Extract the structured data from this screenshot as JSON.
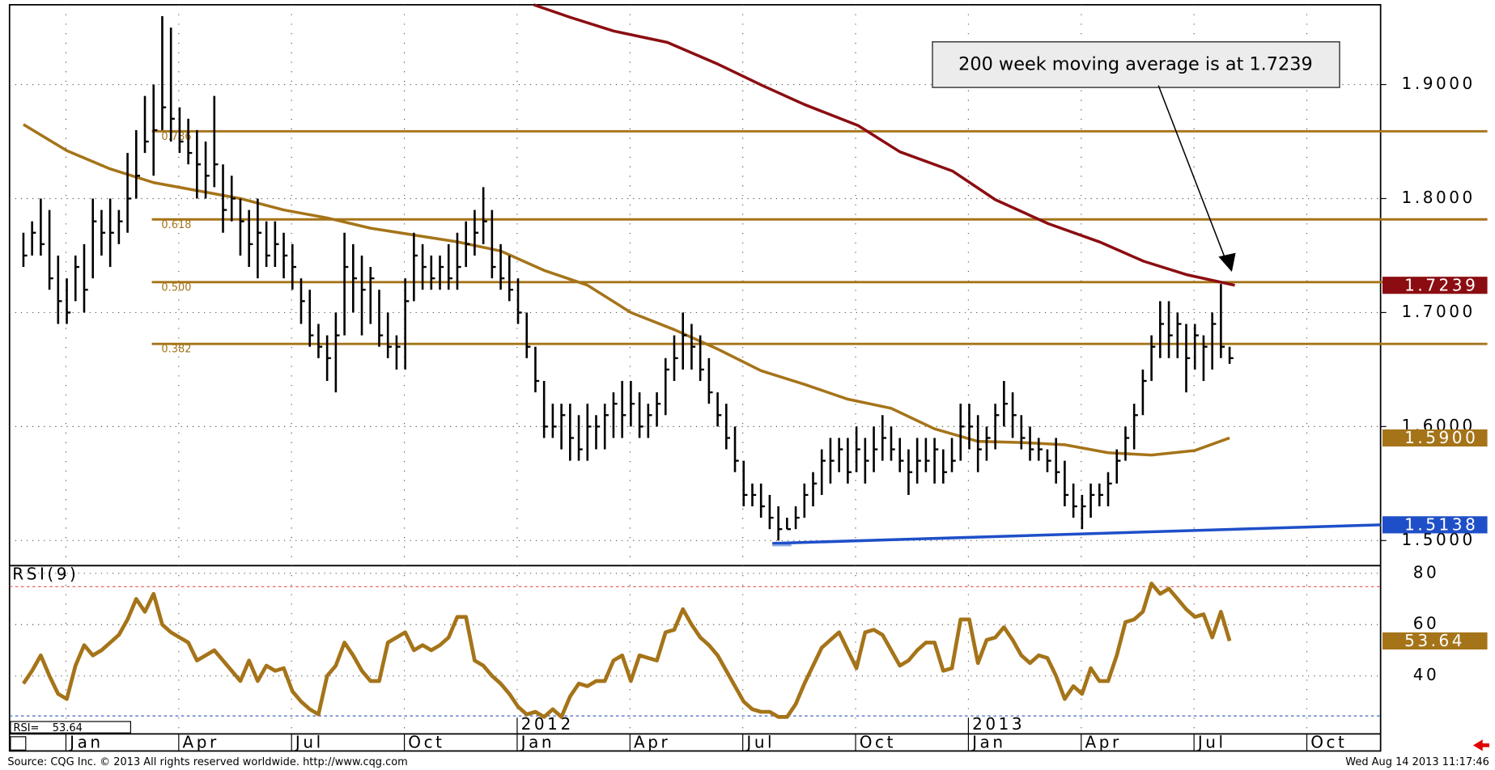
{
  "chart_data": {
    "type": "ohlc",
    "xlim": [
      -1.6,
      156.4
    ],
    "xticks": [
      {
        "value": 4.9,
        "label": "Jan"
      },
      {
        "value": 17.9,
        "label": "Apr"
      },
      {
        "value": 30.9,
        "label": "Jul"
      },
      {
        "value": 43.9,
        "label": "Oct"
      },
      {
        "value": 56.9,
        "label": "Jan"
      },
      {
        "value": 69.9,
        "label": "Apr"
      },
      {
        "value": 82.9,
        "label": "Jul"
      },
      {
        "value": 95.9,
        "label": "Oct"
      },
      {
        "value": 108.9,
        "label": "Jan"
      },
      {
        "value": 121.9,
        "label": "Apr"
      },
      {
        "value": 134.9,
        "label": "Jul"
      },
      {
        "value": 147.9,
        "label": "Oct"
      }
    ],
    "year_labels": [
      {
        "value": 56.9,
        "label": "2012"
      },
      {
        "value": 108.9,
        "label": "2013"
      }
    ],
    "ylim": [
      1.478,
      1.97
    ],
    "yticks": [
      {
        "value": 1.5,
        "label": "1.5000"
      },
      {
        "value": 1.6,
        "label": "1.6000"
      },
      {
        "value": 1.7,
        "label": "1.7000"
      },
      {
        "value": 1.8,
        "label": "1.8000"
      },
      {
        "value": 1.9,
        "label": "1.9000"
      }
    ],
    "grid": true,
    "bars": {
      "color": "#000000",
      "highs": [
        1.77,
        1.78,
        1.8,
        1.79,
        1.75,
        1.73,
        1.75,
        1.76,
        1.8,
        1.79,
        1.8,
        1.79,
        1.84,
        1.86,
        1.89,
        1.9,
        1.96,
        1.95,
        1.88,
        1.87,
        1.86,
        1.85,
        1.89,
        1.83,
        1.82,
        1.8,
        1.79,
        1.8,
        1.78,
        1.78,
        1.77,
        1.76,
        1.73,
        1.72,
        1.69,
        1.68,
        1.7,
        1.77,
        1.76,
        1.75,
        1.74,
        1.72,
        1.7,
        1.68,
        1.73,
        1.77,
        1.76,
        1.75,
        1.75,
        1.76,
        1.77,
        1.78,
        1.79,
        1.81,
        1.79,
        1.76,
        1.75,
        1.73,
        1.7,
        1.67,
        1.64,
        1.62,
        1.62,
        1.62,
        1.61,
        1.62,
        1.61,
        1.62,
        1.63,
        1.64,
        1.64,
        1.63,
        1.62,
        1.63,
        1.66,
        1.68,
        1.7,
        1.69,
        1.68,
        1.66,
        1.63,
        1.62,
        1.6,
        1.57,
        1.55,
        1.55,
        1.54,
        1.53,
        1.52,
        1.53,
        1.55,
        1.56,
        1.58,
        1.59,
        1.59,
        1.59,
        1.6,
        1.59,
        1.6,
        1.61,
        1.6,
        1.59,
        1.58,
        1.59,
        1.59,
        1.59,
        1.58,
        1.59,
        1.62,
        1.62,
        1.61,
        1.6,
        1.62,
        1.64,
        1.63,
        1.61,
        1.6,
        1.59,
        1.58,
        1.59,
        1.57,
        1.55,
        1.54,
        1.55,
        1.55,
        1.56,
        1.58,
        1.6,
        1.62,
        1.65,
        1.68,
        1.71,
        1.71,
        1.7,
        1.69,
        1.69,
        1.68,
        1.7,
        1.725,
        1.67
      ],
      "lows": [
        1.74,
        1.75,
        1.75,
        1.72,
        1.69,
        1.69,
        1.71,
        1.7,
        1.73,
        1.75,
        1.74,
        1.76,
        1.77,
        1.8,
        1.84,
        1.82,
        1.86,
        1.85,
        1.84,
        1.83,
        1.8,
        1.8,
        1.81,
        1.77,
        1.78,
        1.75,
        1.74,
        1.73,
        1.74,
        1.74,
        1.73,
        1.72,
        1.69,
        1.67,
        1.66,
        1.64,
        1.63,
        1.68,
        1.7,
        1.68,
        1.69,
        1.67,
        1.66,
        1.65,
        1.65,
        1.71,
        1.72,
        1.72,
        1.72,
        1.72,
        1.72,
        1.74,
        1.75,
        1.76,
        1.73,
        1.72,
        1.71,
        1.69,
        1.66,
        1.63,
        1.59,
        1.59,
        1.58,
        1.57,
        1.57,
        1.57,
        1.58,
        1.58,
        1.59,
        1.59,
        1.6,
        1.59,
        1.59,
        1.6,
        1.61,
        1.64,
        1.65,
        1.65,
        1.64,
        1.62,
        1.6,
        1.58,
        1.56,
        1.53,
        1.53,
        1.52,
        1.51,
        1.5,
        1.51,
        1.51,
        1.52,
        1.53,
        1.54,
        1.55,
        1.56,
        1.55,
        1.56,
        1.55,
        1.56,
        1.57,
        1.57,
        1.56,
        1.54,
        1.55,
        1.56,
        1.55,
        1.55,
        1.56,
        1.57,
        1.58,
        1.56,
        1.57,
        1.58,
        1.6,
        1.59,
        1.58,
        1.57,
        1.57,
        1.56,
        1.55,
        1.53,
        1.52,
        1.51,
        1.52,
        1.53,
        1.53,
        1.55,
        1.57,
        1.58,
        1.61,
        1.64,
        1.66,
        1.66,
        1.66,
        1.63,
        1.65,
        1.64,
        1.65,
        1.66,
        1.655
      ],
      "closes": [
        1.75,
        1.77,
        1.76,
        1.73,
        1.71,
        1.7,
        1.74,
        1.72,
        1.78,
        1.77,
        1.77,
        1.78,
        1.8,
        1.82,
        1.85,
        1.86,
        1.88,
        1.87,
        1.85,
        1.84,
        1.83,
        1.82,
        1.83,
        1.79,
        1.8,
        1.78,
        1.76,
        1.77,
        1.75,
        1.76,
        1.75,
        1.74,
        1.71,
        1.68,
        1.67,
        1.66,
        1.68,
        1.74,
        1.73,
        1.72,
        1.73,
        1.68,
        1.67,
        1.67,
        1.71,
        1.75,
        1.74,
        1.73,
        1.74,
        1.73,
        1.74,
        1.76,
        1.77,
        1.78,
        1.74,
        1.73,
        1.72,
        1.7,
        1.67,
        1.64,
        1.6,
        1.6,
        1.61,
        1.59,
        1.58,
        1.6,
        1.6,
        1.61,
        1.62,
        1.61,
        1.62,
        1.6,
        1.61,
        1.62,
        1.65,
        1.66,
        1.68,
        1.67,
        1.65,
        1.63,
        1.61,
        1.59,
        1.57,
        1.54,
        1.54,
        1.53,
        1.52,
        1.51,
        1.51,
        1.52,
        1.54,
        1.55,
        1.57,
        1.57,
        1.58,
        1.56,
        1.58,
        1.57,
        1.58,
        1.59,
        1.58,
        1.57,
        1.56,
        1.57,
        1.57,
        1.58,
        1.56,
        1.57,
        1.6,
        1.6,
        1.58,
        1.59,
        1.61,
        1.62,
        1.61,
        1.59,
        1.58,
        1.58,
        1.57,
        1.56,
        1.54,
        1.53,
        1.53,
        1.54,
        1.54,
        1.55,
        1.57,
        1.59,
        1.61,
        1.64,
        1.67,
        1.69,
        1.68,
        1.69,
        1.66,
        1.68,
        1.67,
        1.69,
        1.67,
        1.66
      ]
    },
    "moving_averages": [
      {
        "color": "#a57419",
        "x": [
          0,
          5,
          10,
          15,
          20,
          25,
          30,
          35,
          40,
          45,
          50,
          55,
          60,
          65,
          70,
          75,
          80,
          85,
          90,
          95,
          100,
          105,
          110,
          115,
          120,
          125,
          130,
          135,
          139
        ],
        "values": [
          1.865,
          1.842,
          1.826,
          1.814,
          1.807,
          1.8,
          1.79,
          1.783,
          1.774,
          1.768,
          1.762,
          1.754,
          1.737,
          1.724,
          1.7,
          1.685,
          1.668,
          1.649,
          1.637,
          1.624,
          1.616,
          1.598,
          1.587,
          1.586,
          1.584,
          1.577,
          1.575,
          1.579,
          1.59
        ],
        "value_label": "1.5900"
      },
      {
        "color": "#8b0d12",
        "x": [
          58.8,
          63,
          68,
          74.2,
          80,
          85.2,
          90,
          96.2,
          101,
          107.1,
          112,
          118.1,
          124,
          129.1,
          134,
          139.6
        ],
        "values": [
          1.97,
          1.959,
          1.947,
          1.937,
          1.918,
          1.899,
          1.8825,
          1.864,
          1.841,
          1.824,
          1.799,
          1.778,
          1.762,
          1.745,
          1.7333,
          1.7239
        ],
        "value_label": "1.7239"
      }
    ],
    "trendline": {
      "color": "#1f4fc8",
      "x": [
        86.3,
        156.4
      ],
      "values": [
        1.4975,
        1.5138
      ],
      "value_label": "1.5138"
    },
    "fib": {
      "color": "#a57419",
      "start": 14.8,
      "levels": [
        {
          "value": 1.859,
          "label": "0.786"
        },
        {
          "value": 1.7817,
          "label": "0.618"
        },
        {
          "value": 1.7267,
          "label": "0.500"
        },
        {
          "value": 1.6725,
          "label": "0.382"
        }
      ]
    },
    "annotation": "200 week moving average is at 1.7239",
    "rsi": {
      "label": "RSI(9)",
      "readout": "RSI=",
      "value_label": "53.64",
      "color": "#a57419",
      "ylim": [
        17.4,
        83
      ],
      "yticks": [
        40,
        60,
        80
      ],
      "levels": [
        {
          "value": 74.8,
          "color": "#e05050"
        },
        {
          "value": 24.4,
          "color": "#4060c0"
        }
      ],
      "values": [
        37,
        42,
        48,
        40,
        33,
        31,
        44,
        52,
        48,
        50,
        53,
        56,
        62,
        70,
        65,
        72,
        60,
        57,
        55,
        53,
        46,
        48,
        50,
        46,
        42,
        38,
        46,
        38,
        44,
        42,
        43,
        34,
        30,
        27,
        25,
        40,
        44,
        53,
        48,
        42,
        38,
        38,
        53,
        55,
        57,
        50,
        52,
        50,
        52,
        55,
        63,
        63,
        46,
        44,
        40,
        37,
        33,
        28,
        25,
        26,
        24,
        27,
        24,
        32,
        37,
        36,
        38,
        38,
        46,
        48,
        38,
        48,
        47,
        46,
        57,
        58,
        66,
        60,
        55,
        52,
        48,
        42,
        36,
        30,
        27,
        26,
        26,
        24,
        24,
        29,
        37,
        44,
        51,
        54,
        57,
        50,
        43,
        57,
        58,
        56,
        50,
        44,
        46,
        50,
        53,
        53,
        42,
        43,
        62,
        62,
        45,
        54,
        55,
        59,
        54,
        48,
        45,
        48,
        47,
        40,
        31,
        36,
        33,
        43,
        38,
        38,
        48,
        61,
        62,
        65,
        76,
        72,
        74,
        70,
        66,
        63,
        64,
        55,
        65,
        53.64
      ]
    }
  },
  "source": "Source: CQG Inc. © 2013 All rights reserved worldwide. http://www.cqg.com",
  "timestamp": "Wed Aug 14 2013 11:17:46"
}
